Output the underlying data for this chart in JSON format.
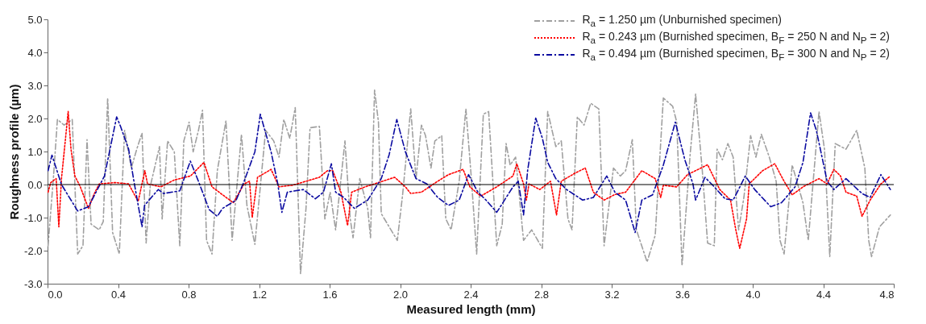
{
  "chart_data": {
    "type": "line",
    "xlabel": "Measured length (mm)",
    "ylabel": "Roughness profile (µm)",
    "xlim": [
      0,
      4.8
    ],
    "ylim": [
      -3,
      5
    ],
    "xticks": [
      {
        "value": 0,
        "label": "0.0"
      },
      {
        "value": 0.4,
        "label": "0.4"
      },
      {
        "value": 0.8,
        "label": "0.8"
      },
      {
        "value": 1.2,
        "label": "1.2"
      },
      {
        "value": 1.6,
        "label": "1.6"
      },
      {
        "value": 2,
        "label": "2.0"
      },
      {
        "value": 2.4,
        "label": "2.4"
      },
      {
        "value": 2.8,
        "label": "2.8"
      },
      {
        "value": 3.2,
        "label": "3.2"
      },
      {
        "value": 3.6,
        "label": "3.6"
      },
      {
        "value": 4,
        "label": "4.0"
      },
      {
        "value": 4.4,
        "label": "4.4"
      },
      {
        "value": 4.8,
        "label": "4.8"
      }
    ],
    "yticks": [
      {
        "value": -3,
        "label": "-3.0"
      },
      {
        "value": -2,
        "label": "-2.0"
      },
      {
        "value": -1,
        "label": "-1.0"
      },
      {
        "value": 0,
        "label": "0.0"
      },
      {
        "value": 1,
        "label": "1.0"
      },
      {
        "value": 2,
        "label": "2.0"
      },
      {
        "value": 3,
        "label": "3.0"
      },
      {
        "value": 4,
        "label": "4.0"
      },
      {
        "value": 5,
        "label": "5.0"
      }
    ],
    "legend": "top right",
    "marker": "none",
    "ref_lines": [
      {
        "axis": "y",
        "value": 0,
        "label": null,
        "color": "#000000",
        "line_style": "solid"
      }
    ],
    "series": [
      {
        "name": "R$_{a}$ = 1.250 µm (Unburnished specimen)",
        "color": "#a0a0a0",
        "line_style": "dashed",
        "x": [
          0.003,
          0.034,
          0.056,
          0.094,
          0.14,
          0.171,
          0.201,
          0.224,
          0.247,
          0.293,
          0.316,
          0.341,
          0.369,
          0.407,
          0.437,
          0.475,
          0.506,
          0.536,
          0.559,
          0.582,
          0.635,
          0.65,
          0.681,
          0.719,
          0.75,
          0.773,
          0.803,
          0.826,
          0.856,
          0.879,
          0.902,
          0.933,
          0.963,
          1.012,
          1.047,
          1.1,
          1.131,
          1.176,
          1.237,
          1.283,
          1.313,
          1.34,
          1.374,
          1.405,
          1.435,
          1.466,
          1.489,
          1.542,
          1.573,
          1.603,
          1.634,
          1.687,
          1.717,
          1.733,
          1.771,
          1.816,
          1.832,
          1.855,
          1.877,
          1.893,
          1.984,
          2.014,
          2.06,
          2.09,
          2.121,
          2.144,
          2.175,
          2.197,
          2.236,
          2.259,
          2.289,
          2.335,
          2.373,
          2.403,
          2.434,
          2.472,
          2.502,
          2.548,
          2.579,
          2.601,
          2.624,
          2.655,
          2.7,
          2.746,
          2.807,
          2.837,
          2.883,
          2.914,
          2.952,
          2.975,
          3.005,
          3.043,
          3.081,
          3.127,
          3.157,
          3.21,
          3.249,
          3.279,
          3.317,
          3.34,
          3.401,
          3.447,
          3.493,
          3.546,
          3.569,
          3.599,
          3.645,
          3.676,
          3.714,
          3.744,
          3.782,
          3.798,
          3.828,
          3.859,
          3.889,
          3.92,
          3.95,
          3.988,
          4.018,
          4.049,
          4.094,
          4.133,
          4.155,
          4.178,
          4.224,
          4.285,
          4.315,
          4.376,
          4.407,
          4.437,
          4.468,
          4.529,
          4.59,
          4.636,
          4.658,
          4.674,
          4.719,
          4.781
        ],
        "values": [
          -1.85,
          0.26,
          1.97,
          1.8,
          1.97,
          -2.1,
          -1.85,
          1.36,
          -1.2,
          -1.37,
          -1.12,
          2.62,
          -1.45,
          -2.1,
          1.64,
          0.5,
          1.07,
          1.56,
          -1.77,
          -0.07,
          1.15,
          -1.04,
          1.32,
          0.99,
          -1.85,
          1.32,
          1.89,
          0.99,
          1.64,
          2.25,
          -1.69,
          -2.1,
          0.42,
          1.93,
          -1.69,
          1.52,
          -0.63,
          -1.81,
          1.64,
          1.32,
          0.83,
          1.97,
          1.4,
          2.33,
          -2.7,
          -0.72,
          1.72,
          1.76,
          -1.04,
          -0.23,
          -1.37,
          1.32,
          -1.04,
          -1.61,
          0.18,
          -0.72,
          -1.61,
          2.86,
          1.89,
          -0.88,
          -1.69,
          -0.31,
          2.29,
          0.18,
          1.8,
          1.48,
          0.5,
          1.32,
          1.48,
          -1.04,
          -1.37,
          0.1,
          2.29,
          0.26,
          -2.1,
          2.13,
          2.21,
          -1.85,
          -1.2,
          1.24,
          0.59,
          0.83,
          -1.69,
          -1.37,
          -1.93,
          2.21,
          1.15,
          1.32,
          -1.04,
          -1.37,
          2.05,
          1.8,
          2.46,
          2.29,
          -1.85,
          0.5,
          0.26,
          0.42,
          1.36,
          -1.37,
          -2.34,
          -1.53,
          2.62,
          2.37,
          1.89,
          -2.46,
          0.91,
          2.74,
          0.42,
          -1.77,
          -1.85,
          1.07,
          0.75,
          1.24,
          0.83,
          -1.37,
          -0.39,
          1.48,
          0.83,
          1.52,
          0.83,
          0.1,
          -1.69,
          -2.1,
          0.59,
          -0.55,
          -1.69,
          2.21,
          1.07,
          -2.18,
          1.24,
          1.07,
          1.64,
          0.5,
          -1.69,
          -2.18,
          -1.28,
          -0.92
        ]
      },
      {
        "name": "R$_{a}$ = 0.243 µm (Burnished specimen, B$_{F}$ = 250 N and N$_{P}$ = 2)",
        "color": "#ff0000",
        "line_style": "dotted",
        "x": [
          0.003,
          0.018,
          0.049,
          0.064,
          0.079,
          0.102,
          0.117,
          0.133,
          0.155,
          0.186,
          0.232,
          0.262,
          0.293,
          0.384,
          0.46,
          0.514,
          0.552,
          0.567,
          0.643,
          0.719,
          0.811,
          0.887,
          0.933,
          0.993,
          1.054,
          1.115,
          1.146,
          1.161,
          1.191,
          1.268,
          1.313,
          1.39,
          1.466,
          1.542,
          1.588,
          1.618,
          1.664,
          1.702,
          1.725,
          1.801,
          1.877,
          1.969,
          2.03,
          2.06,
          2.121,
          2.213,
          2.274,
          2.357,
          2.396,
          2.457,
          2.548,
          2.64,
          2.662,
          2.7,
          2.716,
          2.731,
          2.792,
          2.853,
          2.887,
          2.914,
          2.99,
          3.05,
          3.096,
          3.157,
          3.218,
          3.279,
          3.371,
          3.447,
          3.478,
          3.493,
          3.569,
          3.63,
          3.744,
          3.813,
          3.874,
          3.904,
          3.926,
          3.965,
          3.98,
          4.056,
          4.125,
          4.178,
          4.224,
          4.285,
          4.376,
          4.422,
          4.46,
          4.498,
          4.529,
          4.59,
          4.62,
          4.666,
          4.727,
          4.781
        ],
        "values": [
          -0.23,
          0.06,
          0.18,
          -1.28,
          0.18,
          1.4,
          2.21,
          1.07,
          0.26,
          -0.07,
          -0.72,
          -0.31,
          0.02,
          0.06,
          0.02,
          -0.51,
          0.42,
          0.02,
          -0.07,
          0.14,
          0.26,
          0.67,
          -0.07,
          -0.31,
          -0.55,
          0.02,
          0.1,
          -1.0,
          0.22,
          0.46,
          -0.07,
          -0.02,
          0.1,
          0.22,
          0.42,
          0.42,
          -0.23,
          -1.24,
          -0.23,
          -0.07,
          0.06,
          0.22,
          -0.07,
          -0.27,
          -0.23,
          0.1,
          0.3,
          0.46,
          -0.07,
          -0.35,
          -0.07,
          0.26,
          0.63,
          0.02,
          -0.47,
          0.02,
          -0.15,
          0.1,
          -0.92,
          0.1,
          0.34,
          0.5,
          -0.23,
          -0.47,
          -0.3,
          -0.23,
          0.42,
          0.18,
          -0.39,
          -0.02,
          -0.07,
          0.3,
          0.6,
          -0.15,
          -0.47,
          -1.37,
          -1.93,
          -1.04,
          0.02,
          0.42,
          0.63,
          0.1,
          -0.31,
          -0.07,
          0.18,
          0.02,
          0.46,
          0.26,
          -0.23,
          -0.35,
          -0.96,
          -0.47,
          0.02,
          0.26
        ]
      },
      {
        "name": "R$_{a}$ = 0.494 µm (Burnished specimen, B$_{F}$ = 300 N and N$_{P}$ = 2)",
        "color": "#0a0aa0",
        "line_style": "dashed",
        "x": [
          0.003,
          0.025,
          0.079,
          0.171,
          0.232,
          0.323,
          0.392,
          0.414,
          0.46,
          0.49,
          0.536,
          0.55,
          0.628,
          0.658,
          0.75,
          0.81,
          0.856,
          0.917,
          0.963,
          0.993,
          1.07,
          1.115,
          1.176,
          1.207,
          1.237,
          1.268,
          1.306,
          1.329,
          1.36,
          1.45,
          1.519,
          1.565,
          1.61,
          1.634,
          1.68,
          1.74,
          1.816,
          1.893,
          1.938,
          1.981,
          2.03,
          2.09,
          2.152,
          2.213,
          2.274,
          2.335,
          2.388,
          2.441,
          2.487,
          2.548,
          2.64,
          2.67,
          2.7,
          2.723,
          2.769,
          2.807,
          2.837,
          2.883,
          2.944,
          3.035,
          3.096,
          3.172,
          3.218,
          3.279,
          3.333,
          3.371,
          3.432,
          3.493,
          3.561,
          3.615,
          3.661,
          3.676,
          3.729,
          3.782,
          3.843,
          3.889,
          3.958,
          4.011,
          4.102,
          4.163,
          4.24,
          4.285,
          4.328,
          4.361,
          4.422,
          4.46,
          4.529,
          4.62,
          4.666,
          4.727,
          4.781
        ],
        "values": [
          0.42,
          0.89,
          0,
          -0.8,
          -0.67,
          0.26,
          2.05,
          1.76,
          1.07,
          0.1,
          -1.28,
          -0.63,
          -0.15,
          -0.27,
          -0.19,
          0.71,
          0.1,
          -0.76,
          -0.96,
          -0.72,
          -0.47,
          0.1,
          0.99,
          2.13,
          1.56,
          0.99,
          0.02,
          -0.84,
          -0.23,
          -0.15,
          -0.43,
          -0.23,
          0.63,
          -0.23,
          -0.39,
          -0.72,
          -0.47,
          0.18,
          0.91,
          1.97,
          0.99,
          0.18,
          0.02,
          -0.39,
          -0.63,
          -0.47,
          0.3,
          -0.23,
          -0.47,
          -0.84,
          -0.07,
          0.1,
          -0.92,
          0.42,
          2.01,
          1.4,
          0.67,
          0.18,
          -0.15,
          -0.47,
          -0.39,
          0.26,
          -0.23,
          -0.47,
          -1.45,
          -0.47,
          -0.31,
          0.59,
          1.89,
          0.75,
          0.02,
          -0.47,
          0.22,
          -0.07,
          -0.43,
          -0.47,
          0.26,
          -0.15,
          -0.67,
          -0.55,
          -0.07,
          0.67,
          2.17,
          1.64,
          0.1,
          -0.15,
          0.18,
          -0.27,
          -0.39,
          0.3,
          -0.15
        ]
      }
    ]
  }
}
